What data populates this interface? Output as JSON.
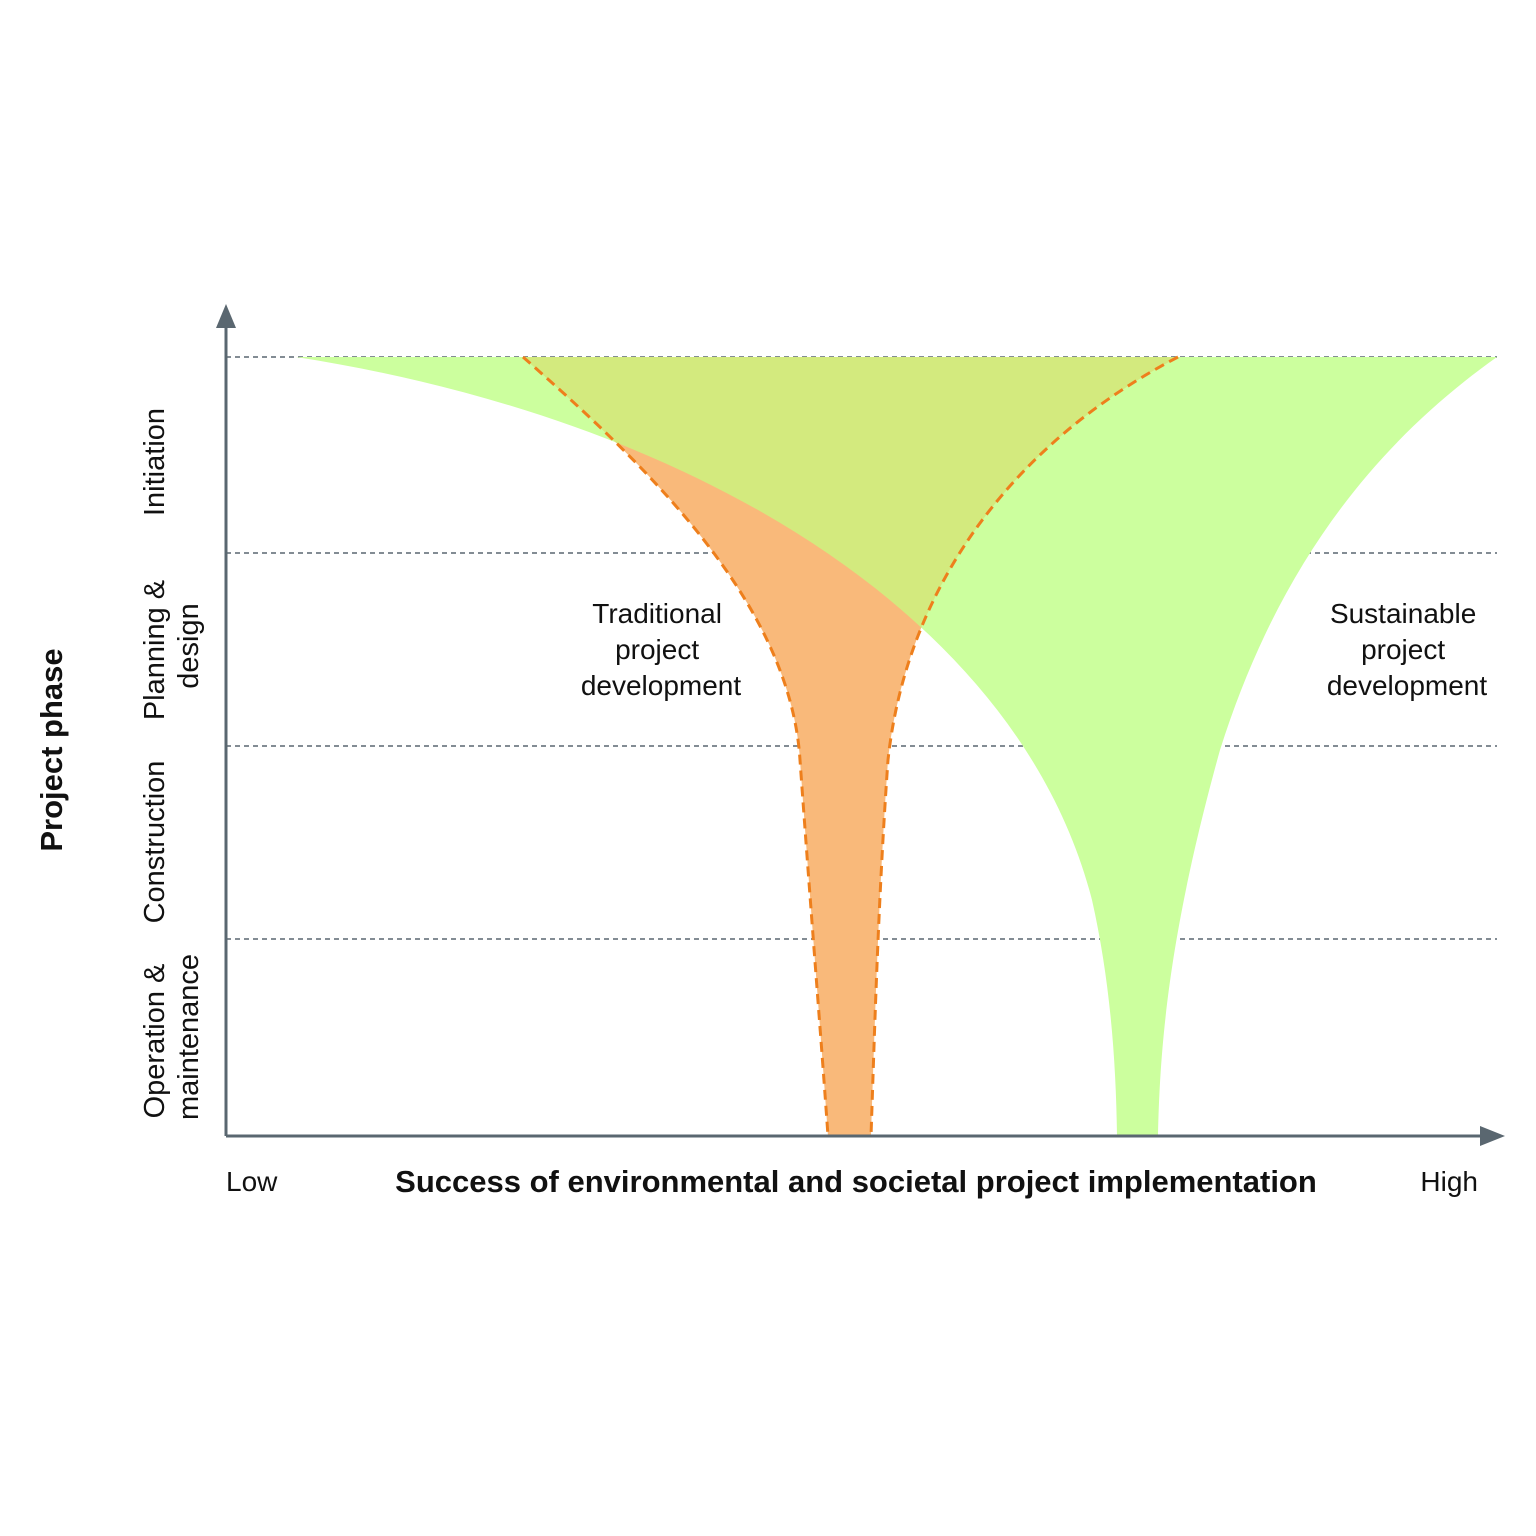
{
  "y_axis": {
    "title": "Project phase"
  },
  "x_axis": {
    "title": "Success of environmental and societal project implementation",
    "low_label": "Low",
    "high_label": "High"
  },
  "phases": [
    {
      "lines": [
        "Initiation"
      ]
    },
    {
      "lines": [
        "Planning &",
        "design"
      ]
    },
    {
      "lines": [
        "Construction"
      ]
    },
    {
      "lines": [
        "Operation &",
        "maintenance"
      ]
    }
  ],
  "regions": {
    "traditional": {
      "lines": [
        "Traditional",
        "project",
        "development"
      ],
      "fill": "#f9b97a",
      "stroke": "#ee7f1c"
    },
    "sustainable": {
      "lines": [
        "Sustainable",
        "project",
        "development"
      ],
      "fill": "#ccff9e"
    }
  },
  "overlap_fill": "#d3ea7e",
  "axis_color": "#5a6770",
  "grid_color": "#5a6770"
}
